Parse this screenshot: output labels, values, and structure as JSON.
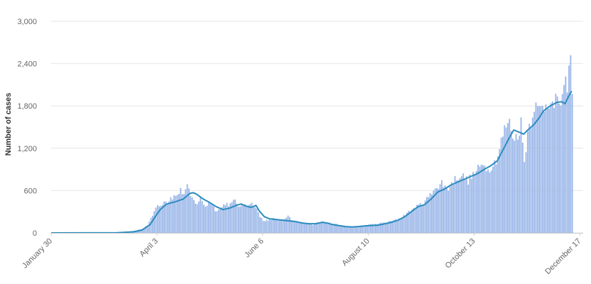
{
  "chart_data": {
    "type": "bar",
    "title": "",
    "xlabel": "",
    "ylabel": "Number of cases",
    "ylim": [
      0,
      3000
    ],
    "yticks": [
      0,
      600,
      1200,
      1800,
      2400,
      3000
    ],
    "ytick_labels": [
      "0",
      "600",
      "1,200",
      "1,800",
      "2,400",
      "3,000"
    ],
    "x_start_date": "January 30",
    "x_tick_labels": [
      "January 30",
      "April 3",
      "June 6",
      "August 10",
      "October 13",
      "December 17"
    ],
    "grid": true,
    "legend": "none",
    "colors": {
      "bars": "#9bb7e8",
      "line": "#2b8cbe",
      "grid": "#e6e6e6",
      "axis": "#cccccc"
    },
    "series": [
      {
        "type": "bar",
        "anchors": [
          [
            0,
            0
          ],
          [
            30,
            2
          ],
          [
            40,
            5
          ],
          [
            45,
            15
          ],
          [
            50,
            30
          ],
          [
            55,
            60
          ],
          [
            58,
            110
          ],
          [
            60,
            200
          ],
          [
            62,
            300
          ],
          [
            64,
            420
          ],
          [
            66,
            380
          ],
          [
            68,
            470
          ],
          [
            70,
            430
          ],
          [
            72,
            500
          ],
          [
            75,
            520
          ],
          [
            78,
            600
          ],
          [
            80,
            560
          ],
          [
            82,
            650
          ],
          [
            84,
            520
          ],
          [
            86,
            450
          ],
          [
            88,
            420
          ],
          [
            90,
            480
          ],
          [
            93,
            380
          ],
          [
            96,
            440
          ],
          [
            99,
            330
          ],
          [
            102,
            340
          ],
          [
            105,
            420
          ],
          [
            108,
            400
          ],
          [
            111,
            460
          ],
          [
            114,
            360
          ],
          [
            117,
            410
          ],
          [
            120,
            420
          ],
          [
            122,
            400
          ],
          [
            124,
            330
          ],
          [
            126,
            230
          ],
          [
            128,
            180
          ],
          [
            131,
            170
          ],
          [
            134,
            200
          ],
          [
            137,
            190
          ],
          [
            140,
            180
          ],
          [
            143,
            230
          ],
          [
            146,
            170
          ],
          [
            149,
            150
          ],
          [
            152,
            140
          ],
          [
            155,
            130
          ],
          [
            158,
            120
          ],
          [
            161,
            150
          ],
          [
            164,
            170
          ],
          [
            167,
            150
          ],
          [
            170,
            130
          ],
          [
            173,
            120
          ],
          [
            176,
            100
          ],
          [
            179,
            90
          ],
          [
            182,
            80
          ],
          [
            185,
            90
          ],
          [
            188,
            100
          ],
          [
            191,
            110
          ],
          [
            194,
            120
          ],
          [
            197,
            130
          ],
          [
            200,
            140
          ],
          [
            203,
            150
          ],
          [
            206,
            170
          ],
          [
            209,
            190
          ],
          [
            212,
            230
          ],
          [
            215,
            280
          ],
          [
            218,
            330
          ],
          [
            221,
            370
          ],
          [
            224,
            420
          ],
          [
            227,
            480
          ],
          [
            230,
            560
          ],
          [
            232,
            680
          ],
          [
            234,
            620
          ],
          [
            236,
            720
          ],
          [
            238,
            650
          ],
          [
            240,
            630
          ],
          [
            242,
            700
          ],
          [
            244,
            760
          ],
          [
            246,
            800
          ],
          [
            248,
            820
          ],
          [
            250,
            780
          ],
          [
            252,
            740
          ],
          [
            254,
            800
          ],
          [
            256,
            850
          ],
          [
            258,
            900
          ],
          [
            260,
            950
          ],
          [
            262,
            1000
          ],
          [
            264,
            880
          ],
          [
            266,
            960
          ],
          [
            268,
            1000
          ],
          [
            270,
            1100
          ],
          [
            272,
            1300
          ],
          [
            274,
            1450
          ],
          [
            276,
            1580
          ],
          [
            278,
            1500
          ],
          [
            280,
            1300
          ],
          [
            282,
            1420
          ],
          [
            284,
            1550
          ],
          [
            286,
            1000
          ],
          [
            288,
            1450
          ],
          [
            290,
            1600
          ],
          [
            292,
            1840
          ],
          [
            294,
            1720
          ],
          [
            296,
            1760
          ],
          [
            298,
            1800
          ],
          [
            300,
            1880
          ],
          [
            302,
            1920
          ],
          [
            304,
            1700
          ],
          [
            306,
            1960
          ],
          [
            308,
            1820
          ],
          [
            310,
            1960
          ],
          [
            312,
            2150
          ],
          [
            314,
            2430
          ],
          [
            315,
            2000
          ]
        ],
        "seed_noise": 0.08
      },
      {
        "type": "line",
        "points": [
          [
            0,
            0
          ],
          [
            40,
            3
          ],
          [
            50,
            15
          ],
          [
            55,
            40
          ],
          [
            60,
            120
          ],
          [
            63,
            230
          ],
          [
            66,
            330
          ],
          [
            70,
            410
          ],
          [
            75,
            440
          ],
          [
            80,
            480
          ],
          [
            84,
            560
          ],
          [
            86,
            570
          ],
          [
            88,
            550
          ],
          [
            92,
            480
          ],
          [
            96,
            430
          ],
          [
            100,
            370
          ],
          [
            104,
            330
          ],
          [
            108,
            350
          ],
          [
            112,
            390
          ],
          [
            115,
            410
          ],
          [
            118,
            380
          ],
          [
            121,
            360
          ],
          [
            124,
            390
          ],
          [
            126,
            310
          ],
          [
            129,
            230
          ],
          [
            132,
            200
          ],
          [
            136,
            190
          ],
          [
            140,
            180
          ],
          [
            144,
            170
          ],
          [
            148,
            160
          ],
          [
            152,
            140
          ],
          [
            156,
            130
          ],
          [
            160,
            130
          ],
          [
            164,
            150
          ],
          [
            167,
            140
          ],
          [
            170,
            120
          ],
          [
            174,
            105
          ],
          [
            178,
            90
          ],
          [
            182,
            85
          ],
          [
            186,
            90
          ],
          [
            190,
            100
          ],
          [
            194,
            105
          ],
          [
            198,
            110
          ],
          [
            202,
            130
          ],
          [
            206,
            150
          ],
          [
            210,
            180
          ],
          [
            214,
            230
          ],
          [
            218,
            300
          ],
          [
            222,
            370
          ],
          [
            226,
            400
          ],
          [
            230,
            480
          ],
          [
            234,
            580
          ],
          [
            238,
            620
          ],
          [
            242,
            680
          ],
          [
            246,
            720
          ],
          [
            250,
            760
          ],
          [
            254,
            800
          ],
          [
            258,
            840
          ],
          [
            262,
            900
          ],
          [
            266,
            950
          ],
          [
            270,
            1020
          ],
          [
            274,
            1200
          ],
          [
            278,
            1380
          ],
          [
            280,
            1460
          ],
          [
            284,
            1420
          ],
          [
            286,
            1400
          ],
          [
            288,
            1450
          ],
          [
            292,
            1530
          ],
          [
            295,
            1620
          ],
          [
            298,
            1730
          ],
          [
            302,
            1800
          ],
          [
            306,
            1850
          ],
          [
            309,
            1860
          ],
          [
            311,
            1830
          ],
          [
            313,
            1930
          ],
          [
            315,
            2010
          ]
        ]
      }
    ]
  }
}
